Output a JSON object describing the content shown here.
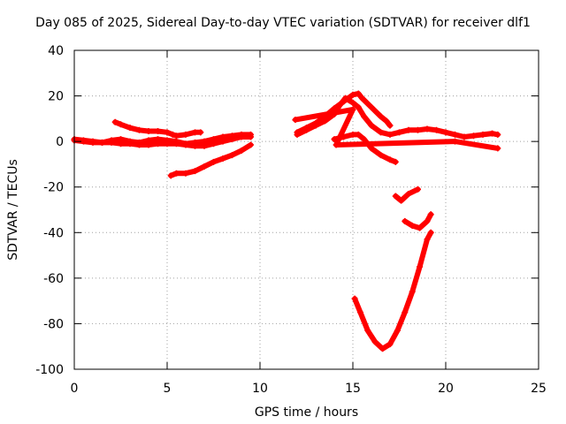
{
  "chart_data": {
    "type": "scatter",
    "title": "Day 085 of 2025, Sidereal Day-to-day VTEC variation (SDTVAR) for receiver dlf1",
    "xlabel": "GPS time / hours",
    "ylabel": "SDTVAR / TECUs",
    "xlim": [
      0,
      25
    ],
    "ylim": [
      -100,
      40
    ],
    "x_ticks": [
      0,
      5,
      10,
      15,
      20,
      25
    ],
    "y_ticks": [
      -100,
      -80,
      -60,
      -40,
      -20,
      0,
      20,
      40
    ],
    "grid": true,
    "marker": "plus",
    "color": "#ff0000",
    "series": [
      {
        "points": [
          [
            0.0,
            0.5
          ],
          [
            0.5,
            0.0
          ],
          [
            1.0,
            -0.5
          ],
          [
            1.5,
            -0.5
          ],
          [
            2.0,
            -0.5
          ],
          [
            2.5,
            -1.0
          ],
          [
            3.0,
            -1.0
          ],
          [
            3.5,
            -1.5
          ],
          [
            4.0,
            -1.5
          ],
          [
            4.5,
            -1.0
          ],
          [
            5.0,
            -1.0
          ],
          [
            5.5,
            -1.0
          ],
          [
            6.0,
            -1.5
          ],
          [
            6.5,
            -2.0
          ],
          [
            7.0,
            -2.0
          ],
          [
            7.5,
            -1.0
          ],
          [
            8.0,
            0.0
          ],
          [
            8.5,
            1.0
          ],
          [
            9.0,
            2.0
          ],
          [
            9.5,
            2.0
          ]
        ]
      },
      {
        "points": [
          [
            0.0,
            1.0
          ],
          [
            0.5,
            0.5
          ],
          [
            1.0,
            0.0
          ],
          [
            1.5,
            -0.5
          ],
          [
            2.0,
            0.5
          ],
          [
            2.5,
            1.0
          ],
          [
            3.0,
            0.0
          ],
          [
            3.5,
            -0.5
          ],
          [
            4.0,
            0.5
          ],
          [
            4.5,
            1.0
          ],
          [
            5.0,
            0.5
          ],
          [
            5.5,
            0.0
          ],
          [
            6.0,
            -1.0
          ],
          [
            6.5,
            -0.5
          ],
          [
            7.0,
            0.0
          ],
          [
            7.5,
            1.0
          ],
          [
            8.0,
            2.0
          ],
          [
            8.5,
            2.5
          ],
          [
            9.0,
            3.0
          ],
          [
            9.5,
            3.0
          ]
        ]
      },
      {
        "points": [
          [
            2.2,
            8.5
          ],
          [
            2.5,
            7.5
          ],
          [
            3.0,
            6.0
          ],
          [
            3.5,
            5.0
          ],
          [
            4.0,
            4.5
          ],
          [
            4.5,
            4.5
          ],
          [
            5.0,
            4.0
          ],
          [
            5.3,
            3.0
          ],
          [
            5.5,
            2.5
          ],
          [
            6.0,
            3.0
          ],
          [
            6.5,
            4.0
          ],
          [
            6.8,
            4.0
          ]
        ]
      },
      {
        "points": [
          [
            5.2,
            -15.0
          ],
          [
            5.5,
            -14.0
          ],
          [
            6.0,
            -14.0
          ],
          [
            6.5,
            -13.0
          ],
          [
            7.0,
            -11.0
          ],
          [
            7.5,
            -9.0
          ],
          [
            8.0,
            -7.5
          ],
          [
            8.5,
            -6.0
          ],
          [
            9.0,
            -4.0
          ],
          [
            9.5,
            -1.5
          ]
        ]
      },
      {
        "points": [
          [
            12.0,
            4.0
          ],
          [
            12.5,
            6.0
          ],
          [
            13.0,
            8.0
          ],
          [
            13.5,
            11.0
          ],
          [
            14.0,
            14.5
          ],
          [
            14.5,
            17.5
          ],
          [
            15.0,
            20.5
          ],
          [
            15.3,
            21.0
          ],
          [
            15.5,
            19.0
          ],
          [
            16.0,
            15.0
          ],
          [
            16.5,
            11.0
          ],
          [
            16.8,
            9.0
          ],
          [
            17.0,
            7.0
          ]
        ]
      },
      {
        "points": [
          [
            12.0,
            3.0
          ],
          [
            12.5,
            5.0
          ],
          [
            13.0,
            7.0
          ],
          [
            13.5,
            9.0
          ],
          [
            14.0,
            12.0
          ],
          [
            14.3,
            16.0
          ],
          [
            14.6,
            19.0
          ],
          [
            15.0,
            17.0
          ],
          [
            15.3,
            15.0
          ],
          [
            15.6,
            11.0
          ],
          [
            16.0,
            7.0
          ],
          [
            16.5,
            4.0
          ],
          [
            17.0,
            3.0
          ],
          [
            17.5,
            4.0
          ],
          [
            18.0,
            5.0
          ],
          [
            18.5,
            5.0
          ],
          [
            19.0,
            5.5
          ],
          [
            19.5,
            5.0
          ],
          [
            20.0,
            4.0
          ],
          [
            20.5,
            3.0
          ],
          [
            21.0,
            2.0
          ],
          [
            21.5,
            2.5
          ],
          [
            22.0,
            3.0
          ],
          [
            22.5,
            3.5
          ],
          [
            22.8,
            3.0
          ]
        ]
      },
      {
        "points": [
          [
            14.0,
            1.0
          ],
          [
            14.5,
            2.0
          ],
          [
            15.0,
            3.0
          ],
          [
            15.3,
            3.0
          ],
          [
            15.6,
            1.0
          ],
          [
            16.0,
            -3.0
          ],
          [
            16.5,
            -6.0
          ],
          [
            17.0,
            -8.0
          ],
          [
            17.3,
            -9.0
          ]
        ]
      },
      {
        "points": [
          [
            17.3,
            -24.0
          ],
          [
            17.6,
            -26.0
          ],
          [
            18.0,
            -23.0
          ],
          [
            18.5,
            -21.0
          ]
        ]
      },
      {
        "points": [
          [
            17.8,
            -35.0
          ],
          [
            18.2,
            -37.0
          ],
          [
            18.6,
            -38.0
          ],
          [
            19.0,
            -35.0
          ],
          [
            19.2,
            -32.0
          ]
        ]
      },
      {
        "points": [
          [
            15.1,
            -69.0
          ],
          [
            15.4,
            -75.0
          ],
          [
            15.8,
            -83.0
          ],
          [
            16.2,
            -88.0
          ],
          [
            16.6,
            -91.0
          ],
          [
            17.0,
            -89.0
          ],
          [
            17.4,
            -83.0
          ],
          [
            17.8,
            -75.0
          ],
          [
            18.2,
            -66.0
          ],
          [
            18.6,
            -55.0
          ],
          [
            19.0,
            -43.0
          ],
          [
            19.2,
            -40.0
          ]
        ]
      },
      {
        "points": [
          [
            11.9,
            9.5
          ],
          [
            15.0,
            14.0
          ],
          [
            14.1,
            -1.5
          ],
          [
            20.5,
            0.0
          ],
          [
            22.8,
            -3.0
          ]
        ]
      }
    ]
  }
}
